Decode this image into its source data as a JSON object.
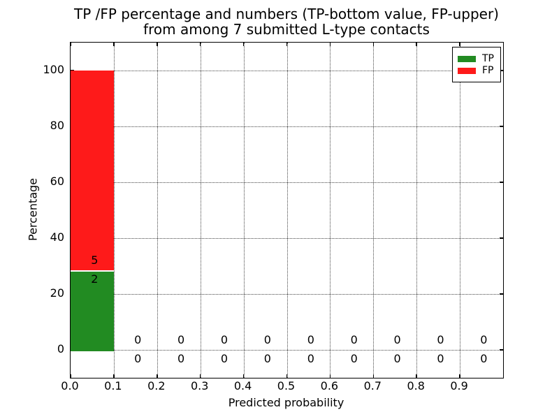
{
  "title": {
    "line1": "TP /FP percentage and numbers (TP-bottom value, FP-upper)",
    "line2": "from among 7 submitted L-type contacts"
  },
  "chart_data": {
    "type": "bar",
    "stacked": true,
    "title": "TP /FP percentage and numbers (TP-bottom value, FP-upper) from among 7 submitted L-type contacts",
    "xlabel": "Predicted probability",
    "ylabel": "Percentage",
    "xlim": [
      0.0,
      1.0
    ],
    "ylim": [
      -10,
      110
    ],
    "grid": "dotted",
    "x_ticks": [
      "0.0",
      "0.1",
      "0.2",
      "0.3",
      "0.4",
      "0.5",
      "0.6",
      "0.7",
      "0.8",
      "0.9"
    ],
    "y_ticks": [
      "0",
      "20",
      "40",
      "60",
      "80",
      "100"
    ],
    "bins": [
      0.0,
      0.1,
      0.2,
      0.3,
      0.4,
      0.5,
      0.6,
      0.7,
      0.8,
      0.9
    ],
    "bin_width": 0.1,
    "total_contacts": 7,
    "series": [
      {
        "name": "TP",
        "color": "#228B22",
        "counts": [
          2,
          0,
          0,
          0,
          0,
          0,
          0,
          0,
          0,
          0
        ]
      },
      {
        "name": "FP",
        "color": "#FE1A1A",
        "counts": [
          5,
          0,
          0,
          0,
          0,
          0,
          0,
          0,
          0,
          0
        ]
      }
    ],
    "legend": {
      "position": "upper right",
      "entries": [
        {
          "label": "TP",
          "color": "#228B22"
        },
        {
          "label": "FP",
          "color": "#FE1A1A"
        }
      ]
    }
  }
}
